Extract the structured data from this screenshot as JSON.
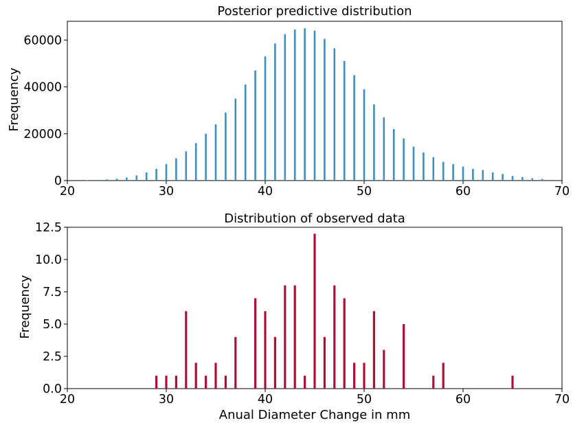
{
  "chart_data": [
    {
      "type": "bar",
      "title": "Posterior predictive distribution",
      "xlabel": "",
      "ylabel": "Frequency",
      "xlim": [
        20,
        70
      ],
      "ylim": [
        0,
        68000
      ],
      "xticks": [
        "20",
        "30",
        "40",
        "50",
        "60",
        "70"
      ],
      "yticks": [
        "0",
        "20000",
        "40000",
        "60000"
      ],
      "color": "#3c8fc3",
      "x": [
        22,
        23,
        24,
        25,
        26,
        27,
        28,
        29,
        30,
        31,
        32,
        33,
        34,
        35,
        36,
        37,
        38,
        39,
        40,
        41,
        42,
        43,
        44,
        45,
        46,
        47,
        48,
        49,
        50,
        51,
        52,
        53,
        54,
        55,
        56,
        57,
        58,
        59,
        60,
        61,
        62,
        63,
        64,
        65,
        66,
        67,
        68,
        69
      ],
      "values": [
        100,
        250,
        500,
        800,
        1300,
        2200,
        3500,
        5000,
        7000,
        9500,
        12500,
        16000,
        20000,
        24000,
        29000,
        35000,
        41000,
        47000,
        53000,
        58500,
        62500,
        64500,
        65000,
        64000,
        60500,
        56500,
        51000,
        45000,
        39000,
        32500,
        27000,
        22000,
        18000,
        14500,
        12000,
        10000,
        8000,
        7000,
        6000,
        5000,
        4500,
        3500,
        2800,
        2000,
        1500,
        1000,
        700,
        300
      ]
    },
    {
      "type": "bar",
      "title": "Distribution of observed data",
      "xlabel": "Anual Diameter Change in mm",
      "ylabel": "Frequency",
      "xlim": [
        20,
        70
      ],
      "ylim": [
        0,
        12.5
      ],
      "xticks": [
        "20",
        "30",
        "40",
        "50",
        "60",
        "70"
      ],
      "yticks": [
        "0.0",
        "2.5",
        "5.0",
        "7.5",
        "10.0",
        "12.5"
      ],
      "color": "#ad1035",
      "x": [
        29,
        30,
        31,
        32,
        33,
        34,
        35,
        36,
        37,
        39,
        40,
        41,
        42,
        43,
        44,
        45,
        46,
        47,
        48,
        49,
        50,
        51,
        52,
        54,
        57,
        58,
        65
      ],
      "values": [
        1,
        1,
        1,
        6,
        2,
        1,
        2,
        1,
        4,
        7,
        6,
        4,
        8,
        8,
        1,
        12,
        4,
        8,
        7,
        2,
        2,
        6,
        3,
        5,
        1,
        2,
        1
      ]
    }
  ]
}
